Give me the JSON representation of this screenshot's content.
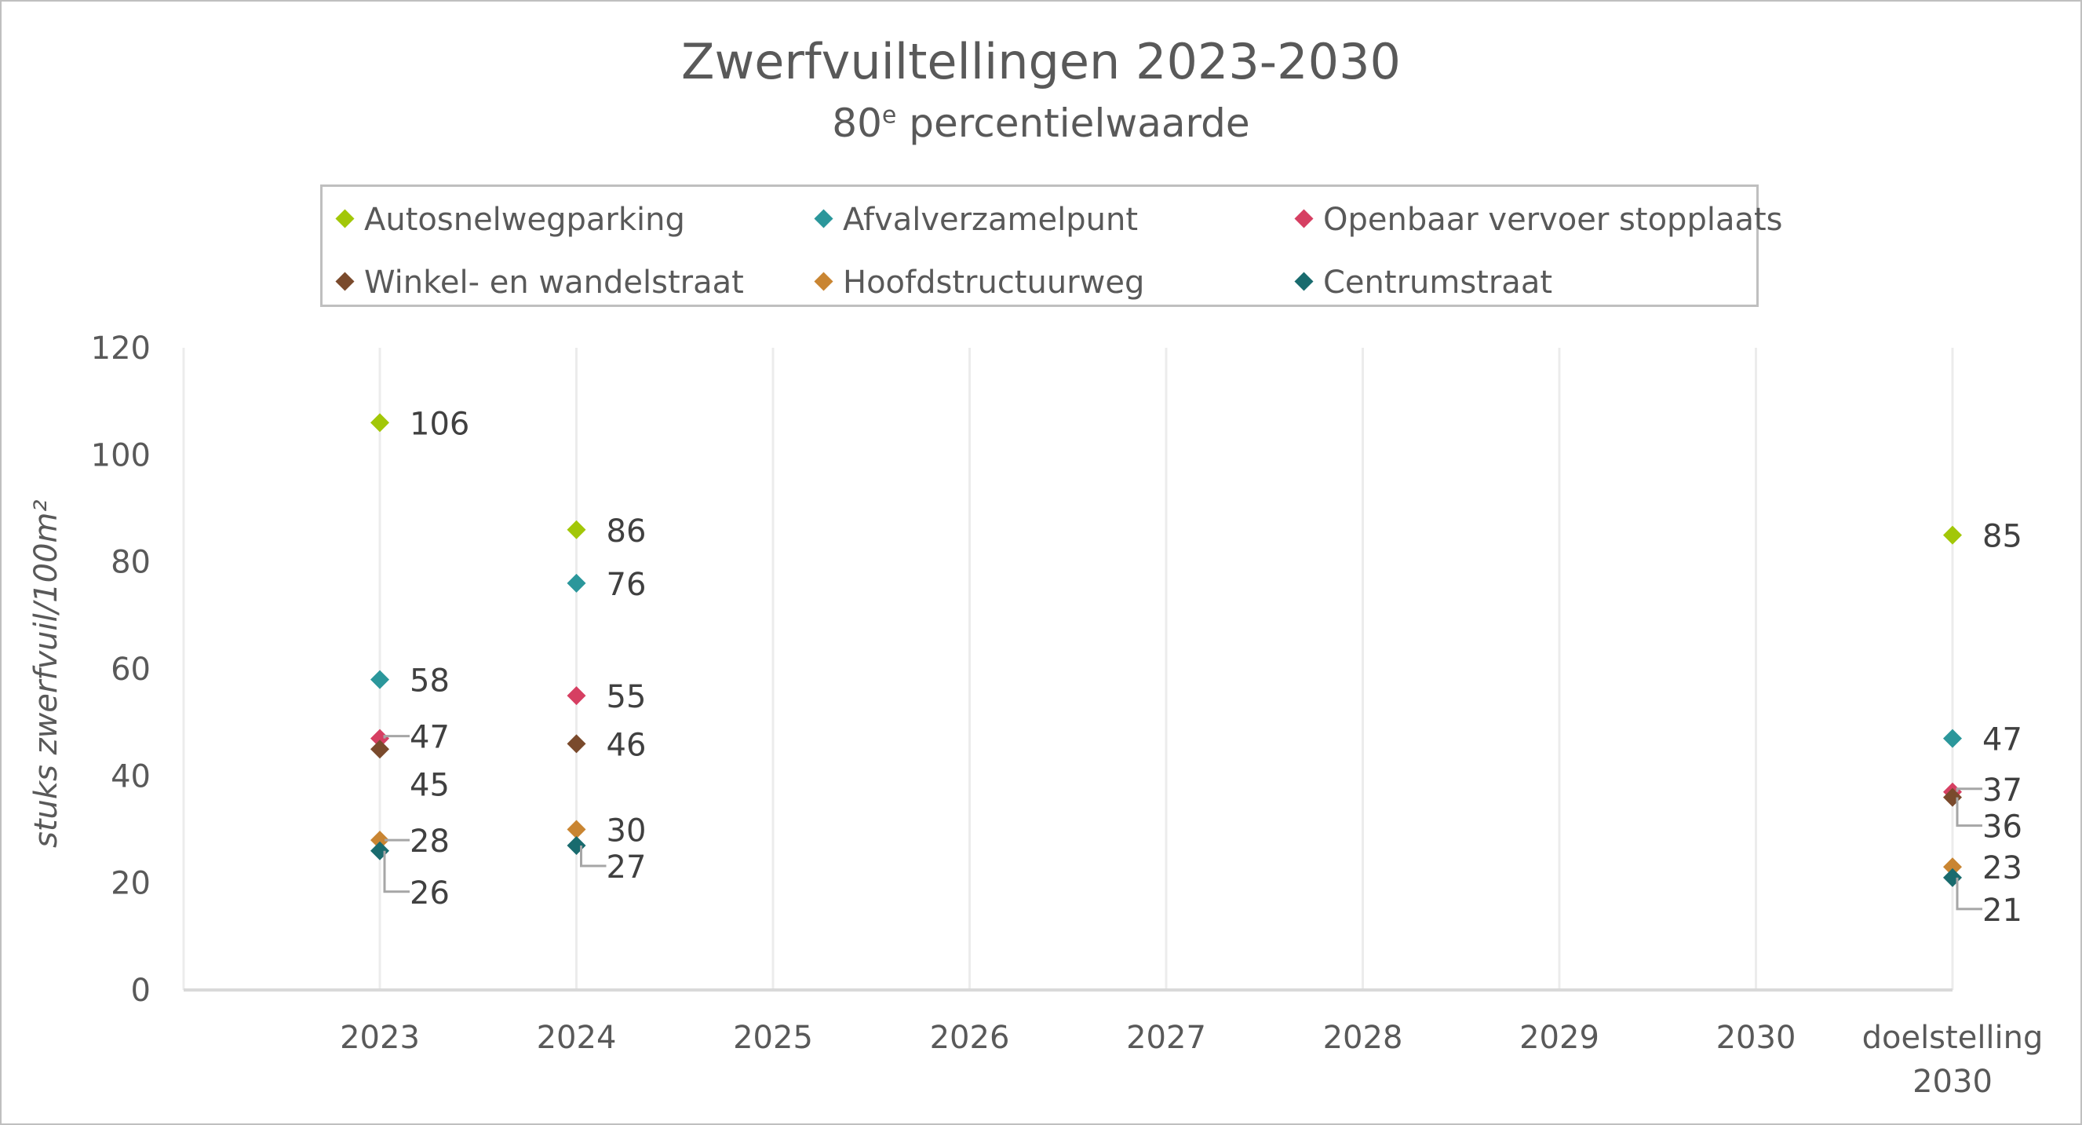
{
  "chart_data": {
    "type": "scatter",
    "title": "Zwerfvuiltellingen 2023-2030",
    "subtitle_main": "80",
    "subtitle_sup": "e",
    "subtitle_rest": " percentielwaarde",
    "xlabel": "",
    "ylabel": "stuks zwerfvuil/100m²",
    "ylim": [
      0,
      120
    ],
    "yticks": [
      "0",
      "20",
      "40",
      "60",
      "80",
      "100",
      "120"
    ],
    "categories": [
      "2023",
      "2024",
      "2025",
      "2026",
      "2027",
      "2028",
      "2029",
      "2030",
      "doelstelling 2030"
    ],
    "category_lines": [
      [
        "2023"
      ],
      [
        "2024"
      ],
      [
        "2025"
      ],
      [
        "2026"
      ],
      [
        "2027"
      ],
      [
        "2028"
      ],
      [
        "2029"
      ],
      [
        "2030"
      ],
      [
        "doelstelling",
        "2030"
      ]
    ],
    "grid": "vertical",
    "legend_position": "top",
    "series": [
      {
        "name": "Autosnelwegparking",
        "color": "#a2c708",
        "values": [
          106,
          86,
          null,
          null,
          null,
          null,
          null,
          null,
          85
        ]
      },
      {
        "name": "Afvalverzamelpunt",
        "color": "#2b979b",
        "values": [
          58,
          76,
          null,
          null,
          null,
          null,
          null,
          null,
          47
        ]
      },
      {
        "name": "Openbaar vervoer stopplaats",
        "color": "#d63f62",
        "values": [
          47,
          55,
          null,
          null,
          null,
          null,
          null,
          null,
          37
        ]
      },
      {
        "name": "Winkel- en wandelstraat",
        "color": "#7a4a2c",
        "values": [
          45,
          46,
          null,
          null,
          null,
          null,
          null,
          null,
          36
        ]
      },
      {
        "name": "Hoofdstructuurweg",
        "color": "#c98532",
        "values": [
          28,
          30,
          null,
          null,
          null,
          null,
          null,
          null,
          23
        ]
      },
      {
        "name": "Centrumstraat",
        "color": "#196b6e",
        "values": [
          26,
          27,
          null,
          null,
          null,
          null,
          null,
          null,
          21
        ]
      }
    ]
  },
  "legend": {
    "items": [
      {
        "label": "Autosnelwegparking",
        "color": "#a2c708"
      },
      {
        "label": "Afvalverzamelpunt",
        "color": "#2b979b"
      },
      {
        "label": "Openbaar vervoer stopplaats",
        "color": "#d63f62"
      },
      {
        "label": "Winkel- en wandelstraat",
        "color": "#7a4a2c"
      },
      {
        "label": "Hoofdstructuurweg",
        "color": "#c98532"
      },
      {
        "label": "Centrumstraat",
        "color": "#196b6e"
      }
    ]
  },
  "data_labels": [
    {
      "text": "106",
      "cat": 0,
      "value": 106,
      "dy": 0
    },
    {
      "text": "58",
      "cat": 0,
      "value": 58,
      "dy": 0
    },
    {
      "text": "47",
      "cat": 0,
      "value": 47,
      "dy": -3,
      "leader": true
    },
    {
      "text": "45",
      "cat": 0,
      "value": 45,
      "dy": 44
    },
    {
      "text": "28",
      "cat": 0,
      "value": 28,
      "dy": 0,
      "leader": true
    },
    {
      "text": "26",
      "cat": 0,
      "value": 26,
      "dy": 52,
      "leader": true
    },
    {
      "text": "86",
      "cat": 1,
      "value": 86,
      "dy": 0
    },
    {
      "text": "76",
      "cat": 1,
      "value": 76,
      "dy": 0
    },
    {
      "text": "55",
      "cat": 1,
      "value": 55,
      "dy": 0
    },
    {
      "text": "46",
      "cat": 1,
      "value": 46,
      "dy": 0
    },
    {
      "text": "30",
      "cat": 1,
      "value": 30,
      "dy": 0
    },
    {
      "text": "27",
      "cat": 1,
      "value": 27,
      "dy": 26,
      "leader": true
    },
    {
      "text": "85",
      "cat": 8,
      "value": 85,
      "dy": 0
    },
    {
      "text": "47",
      "cat": 8,
      "value": 47,
      "dy": 0
    },
    {
      "text": "37",
      "cat": 8,
      "value": 37,
      "dy": -4,
      "leader": true
    },
    {
      "text": "36",
      "cat": 8,
      "value": 36,
      "dy": 36,
      "leader": true
    },
    {
      "text": "23",
      "cat": 8,
      "value": 23,
      "dy": 0
    },
    {
      "text": "21",
      "cat": 8,
      "value": 21,
      "dy": 40,
      "leader": true
    }
  ]
}
